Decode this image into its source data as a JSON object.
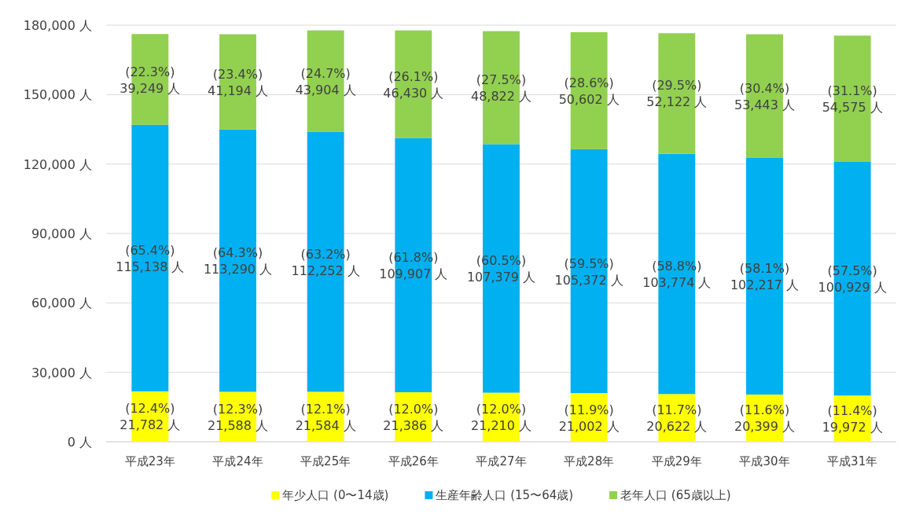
{
  "chart_data": {
    "type": "bar",
    "stacked": true,
    "categories": [
      "平成23年",
      "平成24年",
      "平成25年",
      "平成26年",
      "平成27年",
      "平成28年",
      "平成29年",
      "平成30年",
      "平成31年"
    ],
    "ylim": [
      0,
      180000
    ],
    "yticks": [
      {
        "value": 0,
        "label": "0 人"
      },
      {
        "value": 30000,
        "label": "30,000 人"
      },
      {
        "value": 60000,
        "label": "60,000 人"
      },
      {
        "value": 90000,
        "label": "90,000 人"
      },
      {
        "value": 120000,
        "label": "120,000 人"
      },
      {
        "value": 150000,
        "label": "150,000 人"
      },
      {
        "value": 180000,
        "label": "180,000 人"
      }
    ],
    "grid": "y",
    "legend": "bottom",
    "series": [
      {
        "name": "年少人口 (0〜14歳)",
        "color": "#ffff00",
        "values": [
          21782,
          21588,
          21584,
          21386,
          21210,
          21002,
          20622,
          20399,
          19972
        ],
        "value_labels": [
          "(12.4%)\n21,782 人",
          "(12.3%)\n21,588 人",
          "(12.1%)\n21,584 人",
          "(12.0%)\n21,386 人",
          "(12.0%)\n21,210 人",
          "(11.9%)\n21,002 人",
          "(11.7%)\n20,622 人",
          "(11.6%)\n20,399 人",
          "(11.4%)\n19,972 人"
        ]
      },
      {
        "name": "生産年齢人口 (15〜64歳)",
        "color": "#00b0f0",
        "values": [
          115138,
          113290,
          112252,
          109907,
          107379,
          105372,
          103774,
          102217,
          100929
        ],
        "value_labels": [
          "(65.4%)\n115,138 人",
          "(64.3%)\n113,290 人",
          "(63.2%)\n112,252 人",
          "(61.8%)\n109,907 人",
          "(60.5%)\n107,379 人",
          "(59.5%)\n105,372 人",
          "(58.8%)\n103,774 人",
          "(58.1%)\n102,217 人",
          "(57.5%)\n100,929 人"
        ]
      },
      {
        "name": "老年人口 (65歳以上)",
        "color": "#92d050",
        "values": [
          39249,
          41194,
          43904,
          46430,
          48822,
          50602,
          52122,
          53443,
          54575
        ],
        "value_labels": [
          "(22.3%)\n39,249 人",
          "(23.4%)\n41,194 人",
          "(24.7%)\n43,904 人",
          "(26.1%)\n46,430 人",
          "(27.5%)\n48,822 人",
          "(28.6%)\n50,602 人",
          "(29.5%)\n52,122 人",
          "(30.4%)\n53,443 人",
          "(31.1%)\n54,575 人"
        ]
      }
    ]
  }
}
